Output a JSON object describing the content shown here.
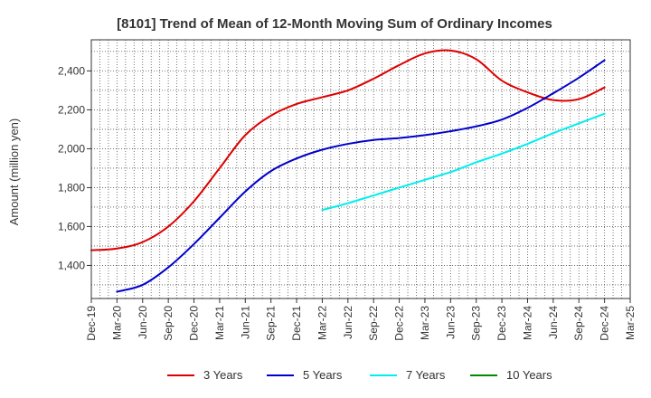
{
  "chart_data": {
    "type": "line",
    "title": "[8101]  Trend of Mean of 12-Month Moving Sum of Ordinary Incomes",
    "xlabel": "",
    "ylabel": "Amount (million yen)",
    "ylim": [
      1230,
      2560
    ],
    "yticks": [
      1400,
      1600,
      1800,
      2000,
      2200,
      2400
    ],
    "ytick_labels": [
      "1,400",
      "1,600",
      "1,800",
      "2,000",
      "2,200",
      "2,400"
    ],
    "categories": [
      "Dec-19",
      "Mar-20",
      "Jun-20",
      "Sep-20",
      "Dec-20",
      "Mar-21",
      "Jun-21",
      "Sep-21",
      "Dec-21",
      "Mar-22",
      "Jun-22",
      "Sep-22",
      "Dec-22",
      "Mar-23",
      "Jun-23",
      "Sep-23",
      "Dec-23",
      "Mar-24",
      "Jun-24",
      "Sep-24",
      "Dec-24",
      "Mar-25"
    ],
    "grid": true,
    "legend_position": "bottom",
    "series": [
      {
        "name": "3 Years",
        "color": "#dd0000",
        "values": [
          1478,
          1487,
          1520,
          1600,
          1730,
          1900,
          2070,
          2170,
          2230,
          2265,
          2300,
          2360,
          2430,
          2490,
          2505,
          2460,
          2350,
          2290,
          2250,
          2255,
          2315,
          null
        ]
      },
      {
        "name": "5 Years",
        "color": "#0000cc",
        "values": [
          null,
          1265,
          1300,
          1390,
          1510,
          1645,
          1780,
          1885,
          1950,
          1995,
          2025,
          2045,
          2055,
          2070,
          2090,
          2115,
          2150,
          2210,
          2285,
          2365,
          2455,
          null
        ]
      },
      {
        "name": "7 Years",
        "color": "#00eeee",
        "values": [
          null,
          null,
          null,
          null,
          null,
          null,
          null,
          null,
          null,
          1685,
          1720,
          1760,
          1800,
          1840,
          1880,
          1930,
          1975,
          2025,
          2080,
          2130,
          2180,
          null
        ]
      },
      {
        "name": "10 Years",
        "color": "#008800",
        "values": [
          null,
          null,
          null,
          null,
          null,
          null,
          null,
          null,
          null,
          null,
          null,
          null,
          null,
          null,
          null,
          null,
          null,
          null,
          null,
          null,
          null,
          null
        ]
      }
    ]
  }
}
